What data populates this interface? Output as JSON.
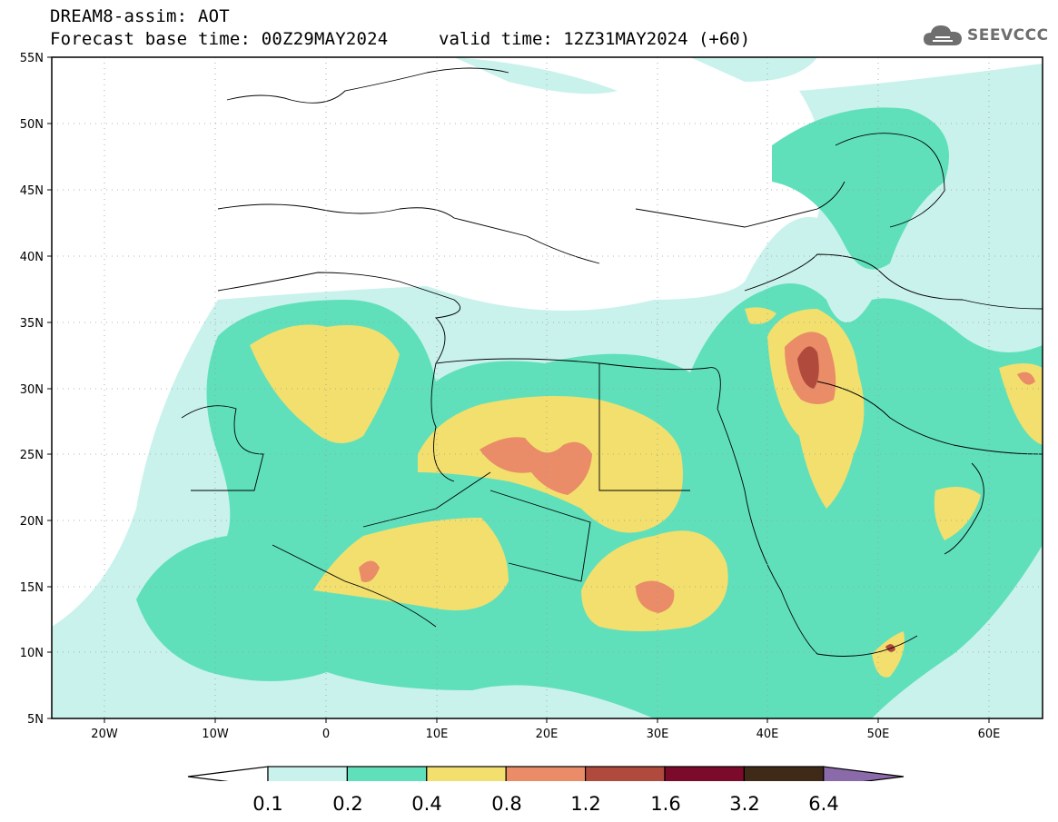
{
  "header": {
    "title": "DREAM8-assim: AOT",
    "base_time": "Forecast base time: 00Z29MAY2024",
    "valid_time": "valid time: 12Z31MAY2024 (+60)",
    "logo_text": "SEEVCCC",
    "logo_icon": "cloud-icon"
  },
  "map": {
    "lat_labels": [
      "55N",
      "50N",
      "45N",
      "40N",
      "35N",
      "30N",
      "25N",
      "20N",
      "15N",
      "10N",
      "5N"
    ],
    "lon_labels": [
      "20W",
      "10W",
      "0",
      "10E",
      "20E",
      "30E",
      "40E",
      "50E",
      "60E"
    ],
    "grid": true
  },
  "colorbar": {
    "labels": [
      "0.1",
      "0.2",
      "0.4",
      "0.8",
      "1.2",
      "1.6",
      "3.2",
      "6.4"
    ],
    "colors": [
      "#ffffff",
      "#c9f2ec",
      "#5fe0bb",
      "#f2df6e",
      "#e98c67",
      "#b04a3c",
      "#7c0a2a",
      "#3e2a17",
      "#8a6aa8"
    ]
  }
}
